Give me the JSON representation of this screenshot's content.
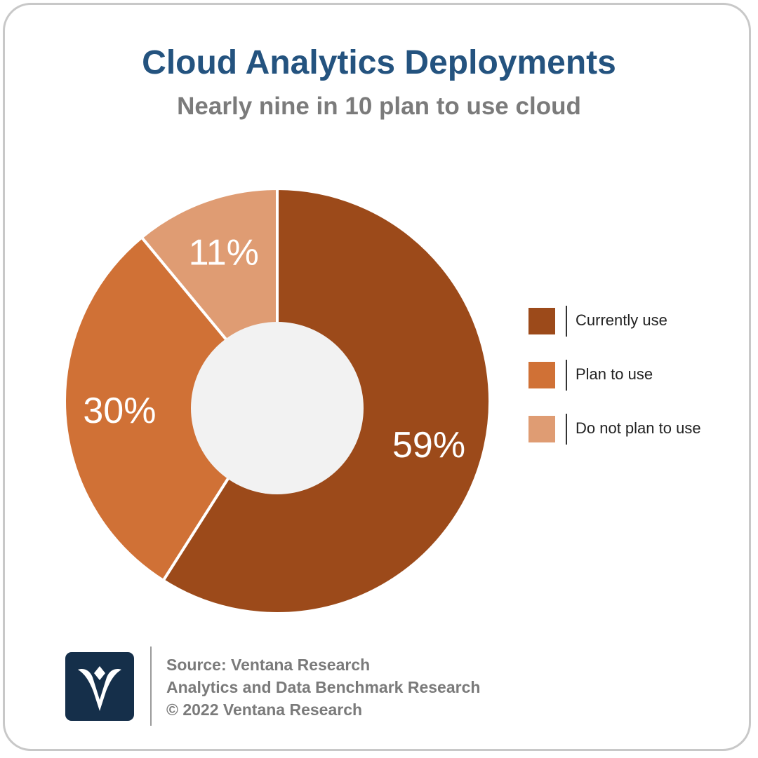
{
  "header": {
    "title": "Cloud Analytics Deployments",
    "subtitle": "Nearly nine in 10 plan to use cloud"
  },
  "chart_data": {
    "type": "pie",
    "variant": "donut",
    "title": "Cloud Analytics Deployments",
    "subtitle": "Nearly nine in 10 plan to use cloud",
    "slices": [
      {
        "label": "Currently use",
        "value": 59,
        "display": "59%",
        "color": "#9c4a1a"
      },
      {
        "label": "Plan to use",
        "value": 30,
        "display": "30%",
        "color": "#d07136"
      },
      {
        "label": "Do not plan to use",
        "value": 11,
        "display": "11%",
        "color": "#df9c73"
      }
    ],
    "legend_position": "right",
    "center_color": "#f2f2f2"
  },
  "footer": {
    "source_lines": [
      "Source: Ventana Research",
      "Analytics and Data Benchmark Research",
      "© 2022 Ventana Research"
    ],
    "logo_icon": "ventana-logo-icon"
  }
}
